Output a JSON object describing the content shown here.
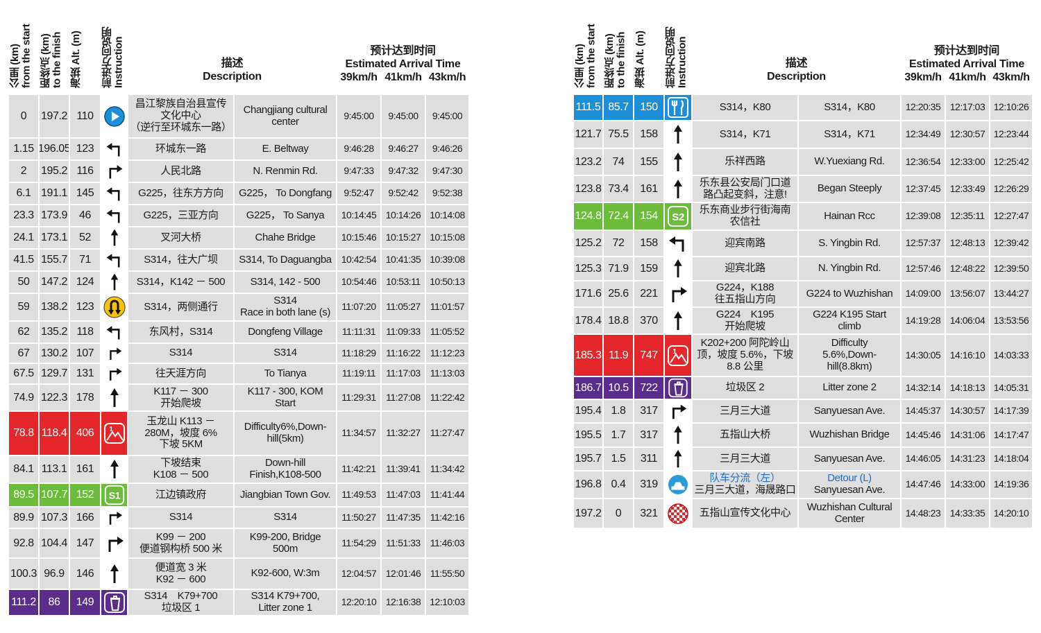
{
  "tables": [
    {
      "header": {
        "columns": [
          "公里 (km)\nfrom the start",
          "距终点 (km)\nto the finish",
          "海拔 Alt. (m)",
          "前进方向说明\nInstruction"
        ],
        "description": "描述\nDescription",
        "arrival": "预计达到时间\nEstimated Arrival Time",
        "speeds": [
          "39km/h",
          "41km/h",
          "43km/h"
        ]
      },
      "rows": [
        {
          "km": 0,
          "to_finish": 197.2,
          "alt": 110,
          "desc_cn": "昌江黎族自治县宣传\n文化中心\n（逆行至环城东一路）",
          "desc_en": "Changjiang cultural\ncenter",
          "times": [
            "9:45:00",
            "9:45:00",
            "9:45:00"
          ]
        },
        {
          "km": 1.15,
          "to_finish": 196.05,
          "alt": 123,
          "desc_cn": "环城东一路",
          "desc_en": "E. Beltway",
          "times": [
            "9:46:28",
            "9:46:27",
            "9:46:26"
          ]
        },
        {
          "km": 2,
          "to_finish": 195.2,
          "alt": 116,
          "desc_cn": "人民北路",
          "desc_en": "N. Renmin Rd.",
          "times": [
            "9:47:33",
            "9:47:32",
            "9:47:30"
          ]
        },
        {
          "km": 6.1,
          "to_finish": 191.1,
          "alt": 145,
          "desc_cn": "G225，往东方方向",
          "desc_en": "G225， To Dongfang",
          "times": [
            "9:52:47",
            "9:52:42",
            "9:52:38"
          ]
        },
        {
          "km": 23.3,
          "to_finish": 173.9,
          "alt": 46,
          "desc_cn": "G225，三亚方向",
          "desc_en": "G225， To Sanya",
          "times": [
            "10:14:45",
            "10:14:26",
            "10:14:08"
          ]
        },
        {
          "km": 24.1,
          "to_finish": 173.1,
          "alt": 52,
          "desc_cn": "叉河大桥",
          "desc_en": "Chahe Bridge",
          "times": [
            "10:15:46",
            "10:15:27",
            "10:15:08"
          ]
        },
        {
          "km": 41.5,
          "to_finish": 155.7,
          "alt": 71,
          "desc_cn": "S314，往大广坝",
          "desc_en": "S314, To Daguangba",
          "times": [
            "10:42:54",
            "10:41:35",
            "10:39:08"
          ]
        },
        {
          "km": 50,
          "to_finish": 147.2,
          "alt": 124,
          "desc_cn": "S314，K142 － 500",
          "desc_en": "S314, 142 - 500",
          "times": [
            "10:54:46",
            "10:53:11",
            "10:50:13"
          ]
        },
        {
          "km": 59,
          "to_finish": 138.2,
          "alt": 123,
          "desc_cn": "S314，两侧通行",
          "desc_en": "S314\nRace in both lane (s)",
          "times": [
            "11:07:20",
            "11:05:27",
            "11:01:57"
          ]
        },
        {
          "km": 62,
          "to_finish": 135.2,
          "alt": 118,
          "desc_cn": "东风村，S314",
          "desc_en": "Dongfeng Village",
          "times": [
            "11:11:31",
            "11:09:33",
            "11:05:52"
          ]
        },
        {
          "km": 67,
          "to_finish": 130.2,
          "alt": 107,
          "desc_cn": "S314",
          "desc_en": "S314",
          "times": [
            "11:18:29",
            "11:16:22",
            "11:12:23"
          ]
        },
        {
          "km": 67.5,
          "to_finish": 129.7,
          "alt": 131,
          "desc_cn": "往天涯方向",
          "desc_en": "To Tianya",
          "times": [
            "11:19:11",
            "11:17:03",
            "11:13:03"
          ]
        },
        {
          "km": 74.9,
          "to_finish": 122.3,
          "alt": 178,
          "desc_cn": "K117 － 300\n开始爬坡",
          "desc_en": "K117 - 300, KOM\nStart",
          "times": [
            "11:29:31",
            "11:27:08",
            "11:22:42"
          ]
        },
        {
          "km": 78.8,
          "to_finish": 118.4,
          "alt": 406,
          "desc_cn": "玉龙山 K113 －\n280M，坡度 6%\n下坡 5KM",
          "desc_en": "Difficulty6%,Down-\nhill(5km)",
          "times": [
            "11:34:57",
            "11:32:27",
            "11:27:47"
          ]
        },
        {
          "km": 84.1,
          "to_finish": 113.1,
          "alt": 161,
          "desc_cn": "下坡结束\nK108 － 500",
          "desc_en": "Down-hill\nFinish,K108-500",
          "times": [
            "11:42:21",
            "11:39:41",
            "11:34:42"
          ]
        },
        {
          "km": 89.5,
          "to_finish": 107.7,
          "alt": 152,
          "instruction": "S1",
          "desc_cn": "江边镇政府",
          "desc_en": "Jiangbian Town Gov.",
          "times": [
            "11:49:53",
            "11:47:03",
            "11:41:44"
          ]
        },
        {
          "km": 89.9,
          "to_finish": 107.3,
          "alt": 166,
          "desc_cn": "S314",
          "desc_en": "S314",
          "times": [
            "11:50:27",
            "11:47:35",
            "11:42:16"
          ]
        },
        {
          "km": 92.8,
          "to_finish": 104.4,
          "alt": 147,
          "desc_cn": "K99 － 200\n便道钢构桥 500 米",
          "desc_en": "K99-200, Bridge\n500m",
          "times": [
            "11:54:29",
            "11:51:33",
            "11:46:03"
          ]
        },
        {
          "km": 100.3,
          "to_finish": 96.9,
          "alt": 146,
          "desc_cn": "便道宽 3 米\nK92 － 600",
          "desc_en": "K92-600, W:3m",
          "times": [
            "12:04:57",
            "12:01:46",
            "11:55:50"
          ]
        },
        {
          "km": 111.2,
          "to_finish": 86,
          "alt": 149,
          "desc_cn": "S314　K79+700\n垃圾区 1",
          "desc_en": "S314 K79+700,\nLitter zone 1",
          "times": [
            "12:20:10",
            "12:16:38",
            "12:10:03"
          ]
        }
      ]
    },
    {
      "header": {
        "columns": [
          "公里 (km)\nfrom the start",
          "距终点 (km)\nto the finish",
          "海拔 Alt. (m)",
          "前进方向说明\nInstruction"
        ],
        "description": "描述\nDescription",
        "arrival": "预计达到时间\nEstimated Arrival Time",
        "speeds": [
          "39km/h",
          "41km/h",
          "43km/h"
        ]
      },
      "rows": [
        {
          "km": 111.5,
          "to_finish": 85.7,
          "alt": 150,
          "desc_cn": "S314，K80",
          "desc_en": "S314，K80",
          "times": [
            "12:20:35",
            "12:17:03",
            "12:10:26"
          ]
        },
        {
          "km": 121.7,
          "to_finish": 75.5,
          "alt": 158,
          "desc_cn": "S314，K71",
          "desc_en": "S314，K71",
          "times": [
            "12:34:49",
            "12:30:57",
            "12:23:44"
          ]
        },
        {
          "km": 123.2,
          "to_finish": 74,
          "alt": 155,
          "desc_cn": "乐祥西路",
          "desc_en": "W.Yuexiang Rd.",
          "times": [
            "12:36:54",
            "12:33:00",
            "12:25:42"
          ]
        },
        {
          "km": 123.8,
          "to_finish": 73.4,
          "alt": 161,
          "desc_cn": "乐东县公安局门口道\n路凸起变斜，注意!",
          "desc_en": "Began Steeply",
          "times": [
            "12:37:45",
            "12:33:49",
            "12:26:29"
          ]
        },
        {
          "km": 124.8,
          "to_finish": 72.4,
          "alt": 154,
          "instruction": "S2",
          "desc_cn": "乐东商业步行街海南\n农信社",
          "desc_en": "Hainan Rcc",
          "times": [
            "12:39:08",
            "12:35:11",
            "12:27:47"
          ]
        },
        {
          "km": 125.2,
          "to_finish": 72,
          "alt": 158,
          "desc_cn": "迎宾南路",
          "desc_en": "S. Yingbin Rd.",
          "times": [
            "12:57:37",
            "12:48:13",
            "12:39:42"
          ]
        },
        {
          "km": 125.3,
          "to_finish": 71.9,
          "alt": 159,
          "desc_cn": "迎宾北路",
          "desc_en": "N. Yingbin Rd.",
          "times": [
            "12:57:46",
            "12:48:22",
            "12:39:50"
          ]
        },
        {
          "km": 171.6,
          "to_finish": 25.6,
          "alt": 221,
          "desc_cn": "G224，K188\n往五指山方向",
          "desc_en": "G224 to Wuzhishan",
          "times": [
            "14:09:00",
            "13:56:07",
            "13:44:27"
          ]
        },
        {
          "km": 178.4,
          "to_finish": 18.8,
          "alt": 370,
          "desc_cn": "G224　K195\n开始爬坡",
          "desc_en": "G224 K195 Start\nclimb",
          "times": [
            "14:19:28",
            "14:06:04",
            "13:53:56"
          ]
        },
        {
          "km": 185.3,
          "to_finish": 11.9,
          "alt": 747,
          "desc_cn": "K202+200 阿陀岭山\n顶，坡度 5.6%，下坡\n8.8 公里",
          "desc_en": "Difficulty\n5.6%,Down-\nhill(8.8km)",
          "times": [
            "14:30:05",
            "14:16:10",
            "14:03:33"
          ]
        },
        {
          "km": 186.7,
          "to_finish": 10.5,
          "alt": 722,
          "desc_cn": "垃圾区 2",
          "desc_en": "Litter zone 2",
          "times": [
            "14:32:14",
            "14:18:13",
            "14:05:31"
          ]
        },
        {
          "km": 195.4,
          "to_finish": 1.8,
          "alt": 317,
          "desc_cn": "三月三大道",
          "desc_en": "Sanyuesan Ave.",
          "times": [
            "14:45:37",
            "14:30:57",
            "14:17:39"
          ]
        },
        {
          "km": 195.5,
          "to_finish": 1.7,
          "alt": 317,
          "desc_cn": "五指山大桥",
          "desc_en": "Wuzhishan Bridge",
          "times": [
            "14:45:46",
            "14:31:06",
            "14:17:47"
          ]
        },
        {
          "km": 195.7,
          "to_finish": 1.5,
          "alt": 311,
          "desc_cn": "三月三大道",
          "desc_en": "Sanyuesan Ave.",
          "times": [
            "14:46:05",
            "14:31:23",
            "14:18:04"
          ]
        },
        {
          "km": 196.8,
          "to_finish": 0.4,
          "alt": 319,
          "desc_cn": [
            "队车分流（左）",
            "三月三大道，海晟路口"
          ],
          "desc_en": [
            "Detour (L)",
            "Sanyuesan Ave."
          ],
          "times": [
            "14:47:46",
            "14:33:00",
            "14:19:36"
          ]
        },
        {
          "km": 197.2,
          "to_finish": 0,
          "alt": 321,
          "desc_cn": "五指山宣传文化中心",
          "desc_en": "Wuzhishan Cultural\nCenter",
          "times": [
            "14:48:23",
            "14:33:35",
            "14:20:10"
          ]
        }
      ]
    }
  ]
}
